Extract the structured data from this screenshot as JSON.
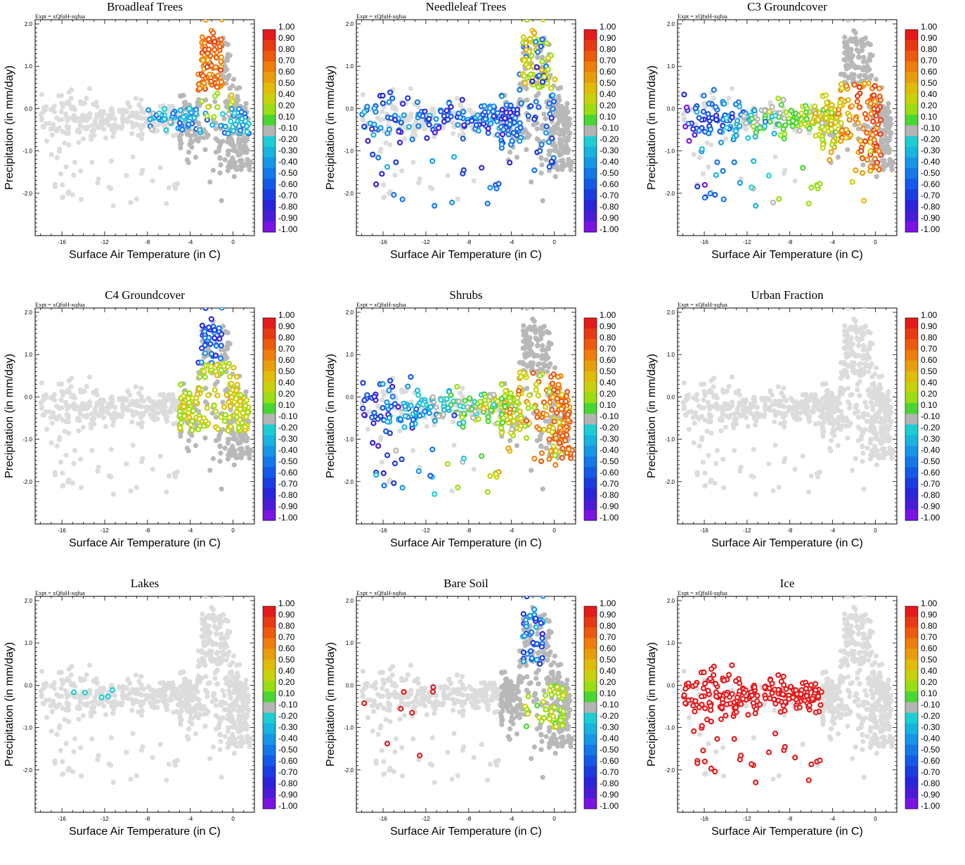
{
  "figure": {
    "expt_label": "Expt = xQfuH-xqfua",
    "xlabel": "Surface Air Temperature (in C)",
    "ylabel": "Precipitation (in mm/day)",
    "x_ticks": [
      "-16",
      "-12",
      "-8",
      "-4",
      "0"
    ],
    "x_tick_values": [
      -16,
      -12,
      -8,
      -4,
      0
    ],
    "y_ticks": [
      "2.0",
      "1.0",
      "0.0",
      "-1.0",
      "-2.0"
    ],
    "y_tick_values": [
      2,
      1,
      0,
      -1,
      -2
    ],
    "xlim": [
      -18.5,
      2
    ],
    "ylim": [
      -3,
      2.1
    ]
  },
  "colorbar": {
    "labels": [
      "1.00",
      "0.90",
      "0.80",
      "0.70",
      "0.60",
      "0.50",
      "0.40",
      "0.20",
      "0.10",
      "-0.10",
      "-0.20",
      "-0.30",
      "-0.40",
      "-0.50",
      "-0.60",
      "-0.70",
      "-0.80",
      "-0.90",
      "-1.00"
    ],
    "colors": [
      "#e41a1c",
      "#e83a12",
      "#ec5a0e",
      "#ef7d0c",
      "#e89e0a",
      "#e0bb08",
      "#c8d20a",
      "#9ade12",
      "#48d632",
      "#b4b4b4",
      "#1ecdd2",
      "#18b3df",
      "#1696e6",
      "#1478e8",
      "#145ae6",
      "#1a3ce0",
      "#2a24da",
      "#4a1cd6",
      "#7a14e2"
    ]
  },
  "chart_data": [
    {
      "type": "scatter",
      "title": "Broadleaf Trees",
      "pattern": "peak"
    },
    {
      "type": "scatter",
      "title": "Needleleaf Trees",
      "pattern": "mixed_blue"
    },
    {
      "type": "scatter",
      "title": "C3 Groundcover",
      "pattern": "band_cold_to_warm"
    },
    {
      "type": "scatter",
      "title": "C4 Groundcover",
      "pattern": "peak_yellow"
    },
    {
      "type": "scatter",
      "title": "Shrubs",
      "pattern": "band_blue_to_orange"
    },
    {
      "type": "scatter",
      "title": "Urban Fraction",
      "pattern": "none"
    },
    {
      "type": "scatter",
      "title": "Lakes",
      "pattern": "few_cold"
    },
    {
      "type": "scatter",
      "title": "Bare Soil",
      "pattern": "warm_green"
    },
    {
      "type": "scatter",
      "title": "Ice",
      "pattern": "cold_red"
    }
  ]
}
